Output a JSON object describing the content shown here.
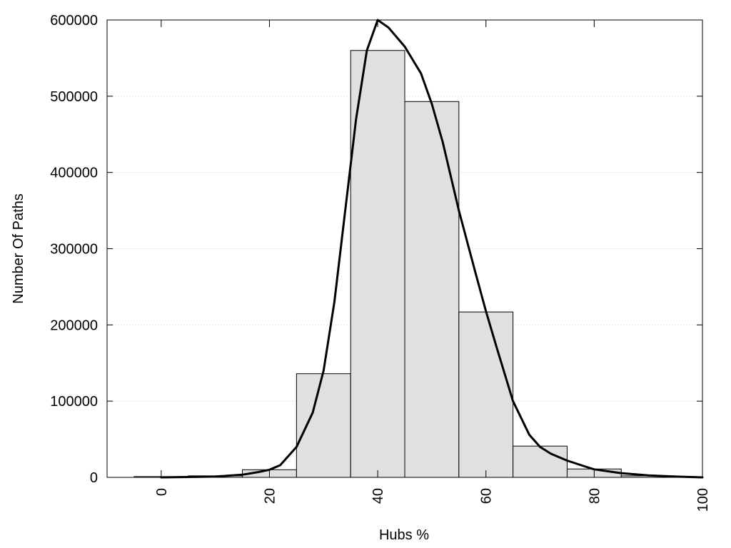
{
  "chart_data": {
    "type": "bar",
    "subtype": "histogram-with-density-curve",
    "xlabel": "Hubs %",
    "ylabel": "Number Of Paths",
    "xlim": [
      -10,
      100
    ],
    "ylim": [
      0,
      600000
    ],
    "x_ticks": [
      0,
      20,
      40,
      60,
      80,
      100
    ],
    "x_tick_labels": [
      "0",
      "20",
      "40",
      "60",
      "80",
      "100"
    ],
    "y_ticks": [
      0,
      100000,
      200000,
      300000,
      400000,
      500000,
      600000
    ],
    "y_tick_labels": [
      "0",
      "100000",
      "200000",
      "300000",
      "400000",
      "500000",
      "600000"
    ],
    "grid": "horizontal-dotted",
    "bin_width": 10,
    "bars": [
      {
        "center": 0,
        "value": 1000
      },
      {
        "center": 10,
        "value": 2000
      },
      {
        "center": 20,
        "value": 10000
      },
      {
        "center": 30,
        "value": 136000
      },
      {
        "center": 40,
        "value": 560000
      },
      {
        "center": 50,
        "value": 493000
      },
      {
        "center": 60,
        "value": 217000
      },
      {
        "center": 70,
        "value": 41000
      },
      {
        "center": 80,
        "value": 11000
      },
      {
        "center": 90,
        "value": 2000
      }
    ],
    "curve": [
      [
        0,
        0
      ],
      [
        5,
        500
      ],
      [
        10,
        1000
      ],
      [
        15,
        3500
      ],
      [
        18,
        7000
      ],
      [
        20,
        10000
      ],
      [
        22,
        16000
      ],
      [
        25,
        40000
      ],
      [
        28,
        85000
      ],
      [
        30,
        140000
      ],
      [
        32,
        230000
      ],
      [
        34,
        350000
      ],
      [
        36,
        470000
      ],
      [
        38,
        560000
      ],
      [
        40,
        600000
      ],
      [
        42,
        590000
      ],
      [
        45,
        565000
      ],
      [
        48,
        530000
      ],
      [
        50,
        490000
      ],
      [
        52,
        440000
      ],
      [
        55,
        350000
      ],
      [
        58,
        270000
      ],
      [
        60,
        218000
      ],
      [
        62,
        170000
      ],
      [
        65,
        100000
      ],
      [
        68,
        56000
      ],
      [
        70,
        40000
      ],
      [
        72,
        31000
      ],
      [
        75,
        22000
      ],
      [
        78,
        15000
      ],
      [
        80,
        10500
      ],
      [
        85,
        5500
      ],
      [
        90,
        2500
      ],
      [
        95,
        1000
      ],
      [
        100,
        0
      ]
    ],
    "colors": {
      "bar_fill": "#e0e0e0",
      "bar_stroke": "#000000",
      "curve": "#000000",
      "grid": "#cccccc"
    }
  }
}
